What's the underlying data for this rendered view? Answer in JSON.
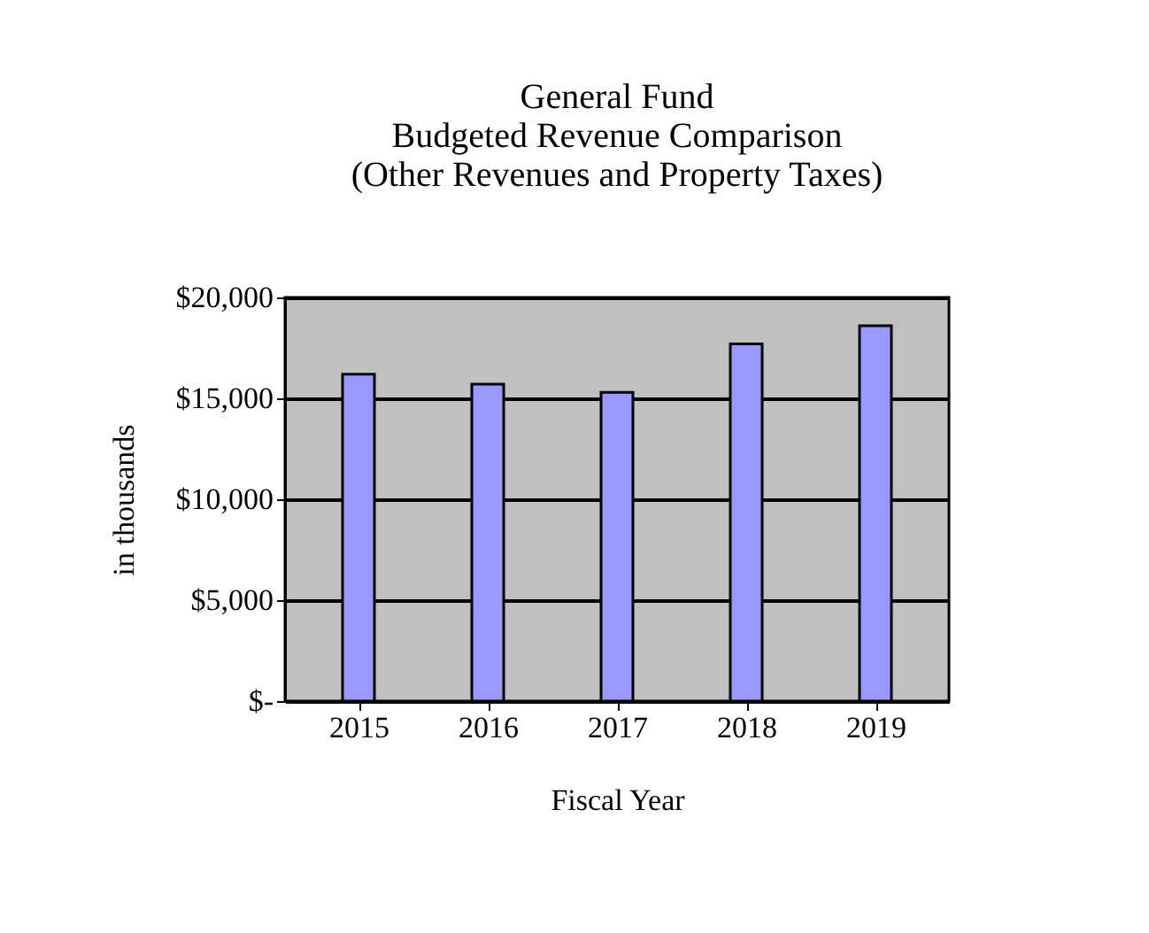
{
  "chart_data": {
    "type": "bar",
    "title": [
      "General Fund",
      "Budgeted Revenue Comparison",
      "(Other Revenues and Property Taxes)"
    ],
    "xlabel": "Fiscal Year",
    "ylabel": "in thousands",
    "categories": [
      "2015",
      "2016",
      "2017",
      "2018",
      "2019"
    ],
    "values": [
      16200,
      15700,
      15300,
      17700,
      18600
    ],
    "color": "#9999ff",
    "ylim": [
      0,
      20000
    ],
    "yticks": [
      {
        "value": 0,
        "label": "$-"
      },
      {
        "value": 5000,
        "label": "$5,000"
      },
      {
        "value": 10000,
        "label": "$10,000"
      },
      {
        "value": 15000,
        "label": "$15,000"
      },
      {
        "value": 20000,
        "label": "$20,000"
      }
    ],
    "grid": "y"
  }
}
